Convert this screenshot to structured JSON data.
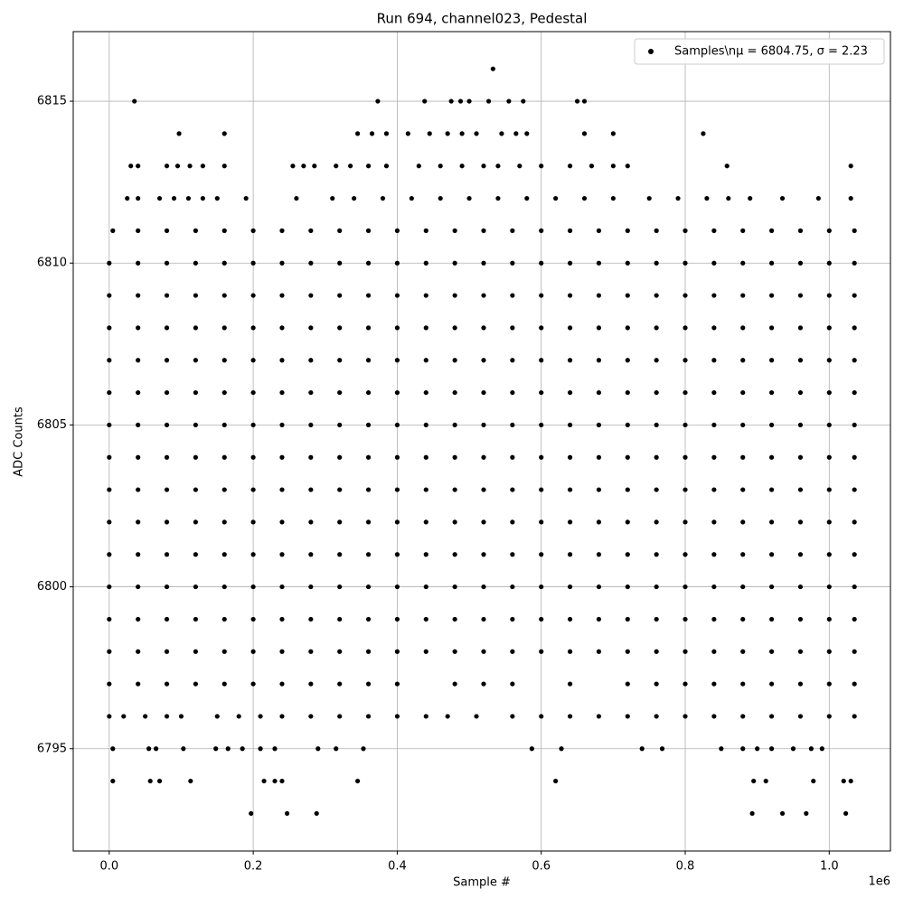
{
  "chart_data": {
    "type": "scatter",
    "title": "Run 694, channel023, Pedestal",
    "x_label": "Sample #",
    "y_label": "ADC Counts",
    "x_offset_label": "1e6",
    "legend_label": "Samples\\nμ = 6804.75, σ = 2.23",
    "legend_position": "upper right",
    "color": "#000000",
    "grid": true,
    "xlim": [
      -50000,
      1085000
    ],
    "ylim": [
      6791.84,
      6817.15
    ],
    "xticks": [
      {
        "value": 0,
        "label": "0.0"
      },
      {
        "value": 200000,
        "label": "0.2"
      },
      {
        "value": 400000,
        "label": "0.4"
      },
      {
        "value": 600000,
        "label": "0.6"
      },
      {
        "value": 800000,
        "label": "0.8"
      },
      {
        "value": 1000000,
        "label": "1.0"
      }
    ],
    "yticks": [
      6795,
      6800,
      6805,
      6810,
      6815
    ],
    "rows": [
      {
        "y": 6816,
        "x": [
          533000
        ]
      },
      {
        "y": 6815,
        "x": [
          35000,
          373000,
          438000,
          475000,
          488000,
          500000,
          527000,
          555000,
          575000,
          650000,
          660000
        ]
      },
      {
        "y": 6814,
        "x": [
          97000,
          160000,
          345000,
          365000,
          385000,
          415000,
          445000,
          470000,
          490000,
          510000,
          545000,
          565000,
          580000,
          660000,
          700000,
          825000
        ]
      },
      {
        "y": 6813,
        "x": [
          30000,
          40000,
          80000,
          95000,
          112000,
          130000,
          160000,
          255000,
          270000,
          285000,
          315000,
          335000,
          360000,
          385000,
          430000,
          460000,
          490000,
          520000,
          540000,
          570000,
          600000,
          640000,
          670000,
          700000,
          720000,
          858000,
          1030000
        ]
      },
      {
        "y": 6812,
        "x": [
          25000,
          40000,
          70000,
          90000,
          110000,
          130000,
          150000,
          190000,
          260000,
          310000,
          340000,
          380000,
          420000,
          460000,
          500000,
          540000,
          580000,
          620000,
          660000,
          700000,
          750000,
          790000,
          830000,
          860000,
          890000,
          935000,
          985000,
          1030000
        ]
      },
      {
        "y": 6811,
        "x": [
          5000,
          40000,
          80000,
          120000,
          160000,
          200000,
          240000,
          280000,
          320000,
          360000,
          400000,
          440000,
          480000,
          520000,
          560000,
          600000,
          640000,
          680000,
          720000,
          760000,
          800000,
          840000,
          880000,
          920000,
          960000,
          1000000,
          1035000
        ]
      },
      {
        "y": 6810,
        "x": [
          0,
          40000,
          80000,
          120000,
          160000,
          200000,
          240000,
          280000,
          320000,
          360000,
          400000,
          440000,
          480000,
          520000,
          560000,
          600000,
          640000,
          680000,
          720000,
          760000,
          800000,
          840000,
          880000,
          920000,
          960000,
          1000000,
          1035000
        ]
      },
      {
        "y": 6809,
        "x": [
          0,
          40000,
          80000,
          120000,
          160000,
          200000,
          240000,
          280000,
          320000,
          360000,
          400000,
          440000,
          480000,
          520000,
          560000,
          600000,
          640000,
          680000,
          720000,
          760000,
          800000,
          840000,
          880000,
          920000,
          960000,
          1000000,
          1035000
        ]
      },
      {
        "y": 6808,
        "x": [
          0,
          40000,
          80000,
          120000,
          160000,
          200000,
          240000,
          280000,
          320000,
          360000,
          400000,
          440000,
          480000,
          520000,
          560000,
          600000,
          640000,
          680000,
          720000,
          760000,
          800000,
          840000,
          880000,
          920000,
          960000,
          1000000,
          1035000
        ]
      },
      {
        "y": 6807,
        "x": [
          0,
          40000,
          80000,
          120000,
          160000,
          200000,
          240000,
          280000,
          320000,
          360000,
          400000,
          440000,
          480000,
          520000,
          560000,
          600000,
          640000,
          680000,
          720000,
          760000,
          800000,
          840000,
          880000,
          920000,
          960000,
          1000000,
          1035000
        ]
      },
      {
        "y": 6806,
        "x": [
          0,
          40000,
          80000,
          120000,
          160000,
          200000,
          240000,
          280000,
          320000,
          360000,
          400000,
          440000,
          480000,
          520000,
          560000,
          600000,
          640000,
          680000,
          720000,
          760000,
          800000,
          840000,
          880000,
          920000,
          960000,
          1000000,
          1035000
        ]
      },
      {
        "y": 6805,
        "x": [
          0,
          40000,
          80000,
          120000,
          160000,
          200000,
          240000,
          280000,
          320000,
          360000,
          400000,
          440000,
          480000,
          520000,
          560000,
          600000,
          640000,
          680000,
          720000,
          760000,
          800000,
          840000,
          880000,
          920000,
          960000,
          1000000,
          1035000
        ]
      },
      {
        "y": 6804,
        "x": [
          0,
          40000,
          80000,
          120000,
          160000,
          200000,
          240000,
          280000,
          320000,
          360000,
          400000,
          440000,
          480000,
          520000,
          560000,
          600000,
          640000,
          680000,
          720000,
          760000,
          800000,
          840000,
          880000,
          920000,
          960000,
          1000000,
          1035000
        ]
      },
      {
        "y": 6803,
        "x": [
          0,
          40000,
          80000,
          120000,
          160000,
          200000,
          240000,
          280000,
          320000,
          360000,
          400000,
          440000,
          480000,
          520000,
          560000,
          600000,
          640000,
          680000,
          720000,
          760000,
          800000,
          840000,
          880000,
          920000,
          960000,
          1000000,
          1035000
        ]
      },
      {
        "y": 6802,
        "x": [
          0,
          40000,
          80000,
          120000,
          160000,
          200000,
          240000,
          280000,
          320000,
          360000,
          400000,
          440000,
          480000,
          520000,
          560000,
          600000,
          640000,
          680000,
          720000,
          760000,
          800000,
          840000,
          880000,
          920000,
          960000,
          1000000,
          1035000
        ]
      },
      {
        "y": 6801,
        "x": [
          0,
          40000,
          80000,
          120000,
          160000,
          200000,
          240000,
          280000,
          320000,
          360000,
          400000,
          440000,
          480000,
          520000,
          560000,
          600000,
          640000,
          680000,
          720000,
          760000,
          800000,
          840000,
          880000,
          920000,
          960000,
          1000000,
          1035000
        ]
      },
      {
        "y": 6800,
        "x": [
          0,
          40000,
          80000,
          120000,
          160000,
          200000,
          240000,
          280000,
          320000,
          360000,
          400000,
          440000,
          480000,
          520000,
          560000,
          600000,
          640000,
          680000,
          720000,
          760000,
          800000,
          840000,
          880000,
          920000,
          960000,
          1000000,
          1035000
        ]
      },
      {
        "y": 6799,
        "x": [
          0,
          40000,
          80000,
          120000,
          160000,
          200000,
          240000,
          280000,
          320000,
          360000,
          400000,
          440000,
          480000,
          520000,
          560000,
          600000,
          640000,
          680000,
          720000,
          760000,
          800000,
          840000,
          880000,
          920000,
          960000,
          1000000,
          1035000
        ]
      },
      {
        "y": 6798,
        "x": [
          0,
          40000,
          80000,
          120000,
          160000,
          200000,
          240000,
          280000,
          320000,
          360000,
          400000,
          440000,
          480000,
          520000,
          560000,
          600000,
          640000,
          680000,
          720000,
          760000,
          800000,
          840000,
          880000,
          920000,
          960000,
          1000000,
          1035000
        ]
      },
      {
        "y": 6797,
        "x": [
          0,
          40000,
          80000,
          120000,
          160000,
          200000,
          240000,
          280000,
          320000,
          360000,
          400000,
          480000,
          520000,
          560000,
          640000,
          720000,
          760000,
          800000,
          840000,
          880000,
          920000,
          960000,
          1000000,
          1035000
        ]
      },
      {
        "y": 6796,
        "x": [
          0,
          20000,
          50000,
          80000,
          100000,
          150000,
          180000,
          210000,
          240000,
          280000,
          320000,
          360000,
          400000,
          440000,
          470000,
          510000,
          560000,
          600000,
          640000,
          680000,
          720000,
          760000,
          800000,
          840000,
          880000,
          920000,
          960000,
          1000000,
          1035000
        ]
      },
      {
        "y": 6795,
        "x": [
          5000,
          55000,
          65000,
          103000,
          148000,
          165000,
          185000,
          210000,
          230000,
          290000,
          315000,
          353000,
          587000,
          628000,
          740000,
          768000,
          850000,
          880000,
          900000,
          920000,
          950000,
          975000,
          990000
        ]
      },
      {
        "y": 6794,
        "x": [
          5000,
          57000,
          70000,
          113000,
          215000,
          230000,
          240000,
          345000,
          620000,
          895000,
          912000,
          978000,
          1020000,
          1030000
        ]
      },
      {
        "y": 6793,
        "x": [
          197000,
          247000,
          288000,
          893000,
          935000,
          968000,
          1023000
        ]
      }
    ]
  }
}
